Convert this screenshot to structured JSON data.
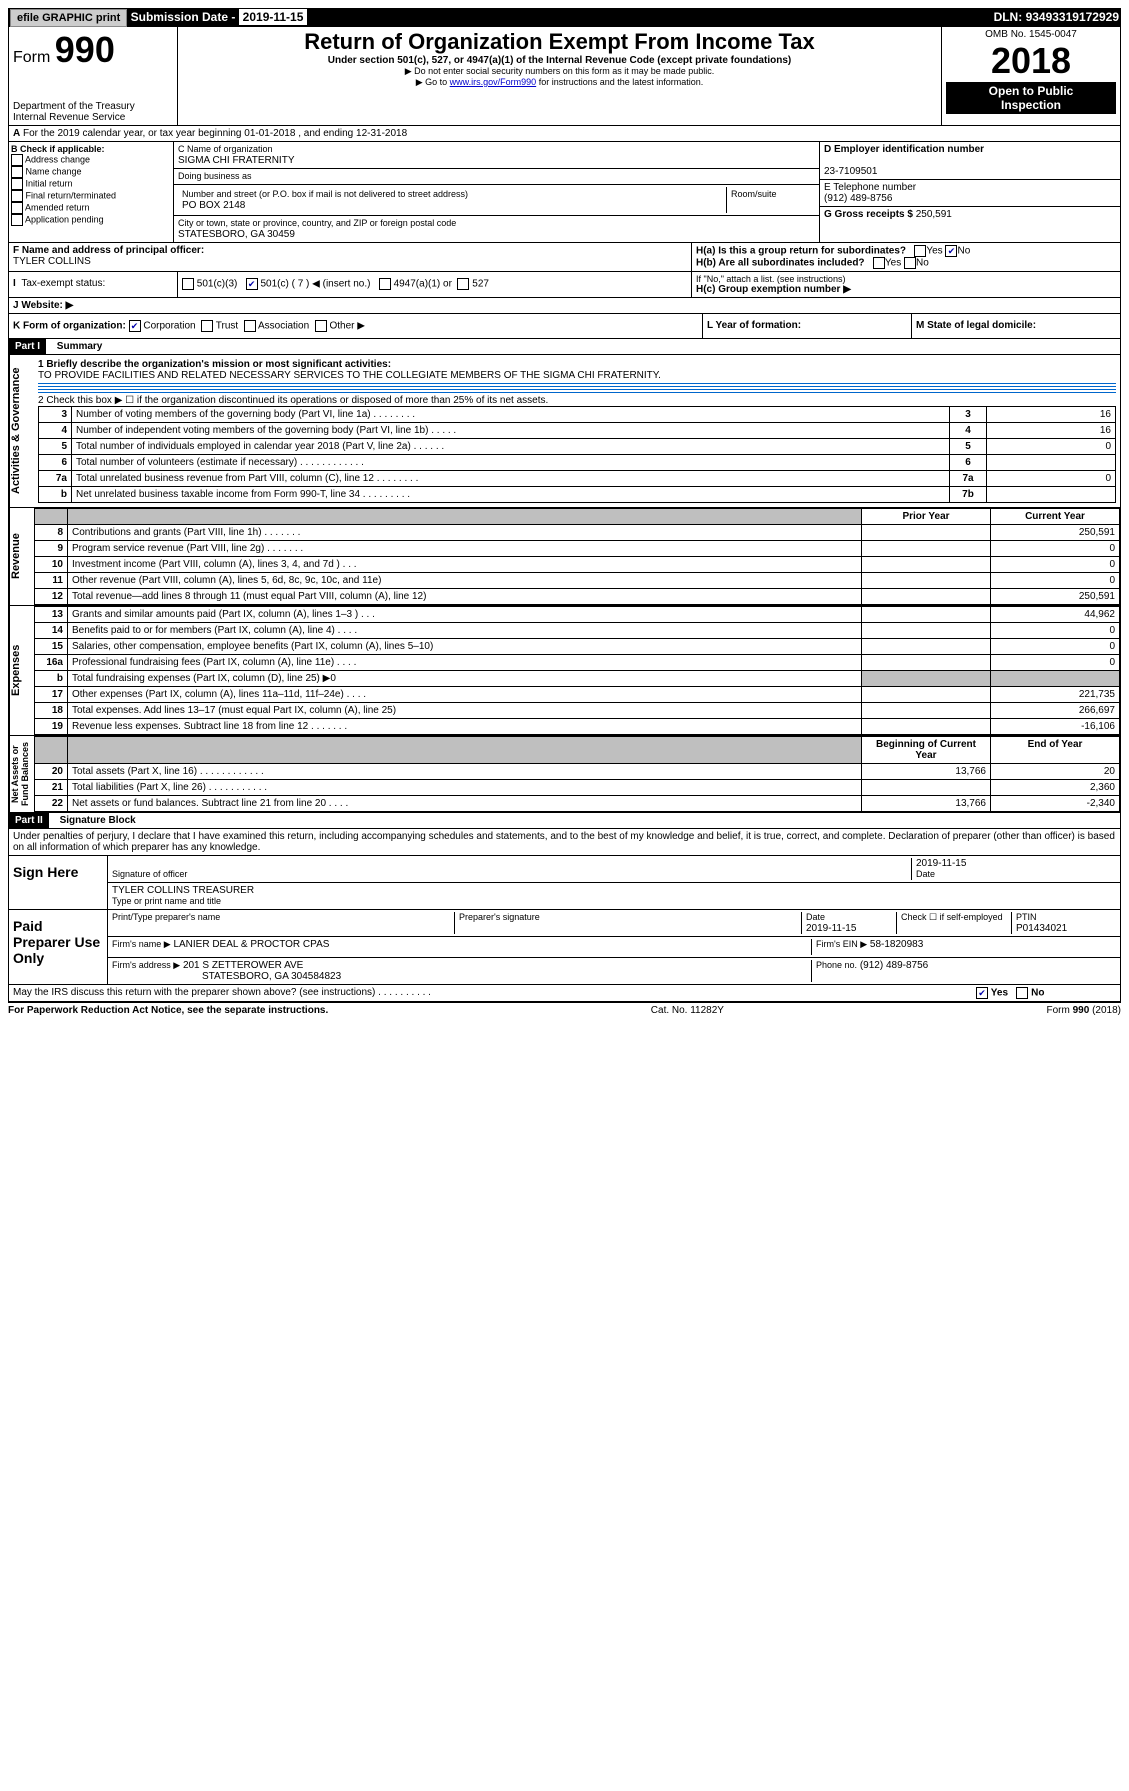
{
  "header": {
    "efile": "efile GRAPHIC print",
    "submission_label": "Submission Date - ",
    "submission_date": "2019-11-15",
    "dln_label": "DLN: ",
    "dln": "93493319172929"
  },
  "form": {
    "form_label": "Form",
    "form_number": "990",
    "title": "Return of Organization Exempt From Income Tax",
    "subtitle": "Under section 501(c), 527, or 4947(a)(1) of the Internal Revenue Code (except private foundations)",
    "note1": "▶ Do not enter social security numbers on this form as it may be made public.",
    "note2_prefix": "▶ Go to ",
    "note2_link": "www.irs.gov/Form990",
    "note2_suffix": " for instructions and the latest information.",
    "dept": "Department of the Treasury\nInternal Revenue Service",
    "omb": "OMB No. 1545-0047",
    "year": "2018",
    "open": "Open to Public\nInspection"
  },
  "row_a": "For the 2019 calendar year, or tax year beginning 01-01-2018    , and ending 12-31-2018",
  "box_b": {
    "label": "B Check if applicable:",
    "items": [
      "Address change",
      "Name change",
      "Initial return",
      "Final return/terminated",
      "Amended return",
      "Application pending"
    ]
  },
  "box_c": {
    "name_label": "C Name of organization",
    "name": "SIGMA CHI FRATERNITY",
    "dba_label": "Doing business as",
    "addr_label": "Number and street (or P.O. box if mail is not delivered to street address)",
    "room_label": "Room/suite",
    "addr": "PO BOX 2148",
    "city_label": "City or town, state or province, country, and ZIP or foreign postal code",
    "city": "STATESBORO, GA  30459"
  },
  "box_d": {
    "label": "D Employer identification number",
    "value": "23-7109501"
  },
  "box_e": {
    "label": "E Telephone number",
    "value": "(912) 489-8756"
  },
  "box_g": {
    "label": "G Gross receipts $ ",
    "value": "250,591"
  },
  "box_f": {
    "label": "F  Name and address of principal officer:",
    "value": "TYLER COLLINS"
  },
  "box_h": {
    "ha": "H(a)  Is this a group return for subordinates?",
    "hb": "H(b)  Are all subordinates included?",
    "hb_note": "If \"No,\" attach a list. (see instructions)",
    "hc": "H(c)  Group exemption number ▶",
    "yes": "Yes",
    "no": "No"
  },
  "box_i": {
    "label": "Tax-exempt status:",
    "c3": "501(c)(3)",
    "c": "501(c) ( 7 ) ◀ (insert no.)",
    "a1": "4947(a)(1) or",
    "s527": "527"
  },
  "box_j": {
    "label": "J   Website: ▶"
  },
  "box_k": {
    "label": "K Form of organization:",
    "corp": "Corporation",
    "trust": "Trust",
    "assoc": "Association",
    "other": "Other ▶"
  },
  "box_l": {
    "label": "L Year of formation:"
  },
  "box_m": {
    "label": "M State of legal domicile:"
  },
  "part1": {
    "header": "Part I",
    "title": "Summary",
    "line1_label": "1  Briefly describe the organization's mission or most significant activities:",
    "line1_text": "TO PROVIDE FACILITIES AND RELATED NECESSARY SERVICES TO THE COLLEGIATE MEMBERS OF THE SIGMA CHI FRATERNITY.",
    "line2": "2    Check this box ▶ ☐  if the organization discontinued its operations or disposed of more than 25% of its net assets.",
    "sidebar_ag": "Activities & Governance",
    "sidebar_rev": "Revenue",
    "sidebar_exp": "Expenses",
    "sidebar_na": "Net Assets or\nFund Balances",
    "col_prior": "Prior Year",
    "col_current": "Current Year",
    "col_begin": "Beginning of Current Year",
    "col_end": "End of Year",
    "rows_ag": [
      {
        "n": "3",
        "d": "Number of voting members of the governing body (Part VI, line 1a)   .    .    .    .    .    .    .    .",
        "b": "3",
        "v": "16"
      },
      {
        "n": "4",
        "d": "Number of independent voting members of the governing body (Part VI, line 1b)   .    .    .    .    .",
        "b": "4",
        "v": "16"
      },
      {
        "n": "5",
        "d": "Total number of individuals employed in calendar year 2018 (Part V, line 2a)   .    .    .    .    .    .",
        "b": "5",
        "v": "0"
      },
      {
        "n": "6",
        "d": "Total number of volunteers (estimate if necessary)   .    .    .    .    .    .    .    .    .    .    .    .",
        "b": "6",
        "v": ""
      },
      {
        "n": "7a",
        "d": "Total unrelated business revenue from Part VIII, column (C), line 12   .    .    .    .    .    .    .    .",
        "b": "7a",
        "v": "0"
      },
      {
        "n": "b",
        "d": "Net unrelated business taxable income from Form 990-T, line 34   .    .    .    .    .    .    .    .    .",
        "b": "7b",
        "v": ""
      }
    ],
    "rows_rev": [
      {
        "n": "8",
        "d": "Contributions and grants (Part VIII, line 1h)   .    .    .    .    .    .    .",
        "p": "",
        "c": "250,591"
      },
      {
        "n": "9",
        "d": "Program service revenue (Part VIII, line 2g)   .    .    .    .    .    .    .",
        "p": "",
        "c": "0"
      },
      {
        "n": "10",
        "d": "Investment income (Part VIII, column (A), lines 3, 4, and 7d )   .    .    .",
        "p": "",
        "c": "0"
      },
      {
        "n": "11",
        "d": "Other revenue (Part VIII, column (A), lines 5, 6d, 8c, 9c, 10c, and 11e)",
        "p": "",
        "c": "0"
      },
      {
        "n": "12",
        "d": "Total revenue—add lines 8 through 11 (must equal Part VIII, column (A), line 12)",
        "p": "",
        "c": "250,591"
      }
    ],
    "rows_exp": [
      {
        "n": "13",
        "d": "Grants and similar amounts paid (Part IX, column (A), lines 1–3 )   .    .    .",
        "p": "",
        "c": "44,962"
      },
      {
        "n": "14",
        "d": "Benefits paid to or for members (Part IX, column (A), line 4)   .    .    .    .",
        "p": "",
        "c": "0"
      },
      {
        "n": "15",
        "d": "Salaries, other compensation, employee benefits (Part IX, column (A), lines 5–10)",
        "p": "",
        "c": "0"
      },
      {
        "n": "16a",
        "d": "Professional fundraising fees (Part IX, column (A), line 11e)   .    .    .    .",
        "p": "",
        "c": "0"
      },
      {
        "n": "b",
        "d": "Total fundraising expenses (Part IX, column (D), line 25) ▶0",
        "shade": true
      },
      {
        "n": "17",
        "d": "Other expenses (Part IX, column (A), lines 11a–11d, 11f–24e)   .    .    .    .",
        "p": "",
        "c": "221,735"
      },
      {
        "n": "18",
        "d": "Total expenses. Add lines 13–17 (must equal Part IX, column (A), line 25)",
        "p": "",
        "c": "266,697"
      },
      {
        "n": "19",
        "d": "Revenue less expenses. Subtract line 18 from line 12   .    .    .    .    .    .    .",
        "p": "",
        "c": "-16,106"
      }
    ],
    "rows_na": [
      {
        "n": "20",
        "d": "Total assets (Part X, line 16)   .    .    .    .    .    .    .    .    .    .    .    .",
        "p": "13,766",
        "c": "20"
      },
      {
        "n": "21",
        "d": "Total liabilities (Part X, line 26)   .    .    .    .    .    .    .    .    .    .    .",
        "p": "",
        "c": "2,360"
      },
      {
        "n": "22",
        "d": "Net assets or fund balances. Subtract line 21 from line 20   .    .    .    .",
        "p": "13,766",
        "c": "-2,340"
      }
    ]
  },
  "part2": {
    "header": "Part II",
    "title": "Signature Block",
    "declaration": "Under penalties of perjury, I declare that I have examined this return, including accompanying schedules and statements, and to the best of my knowledge and belief, it is true, correct, and complete. Declaration of preparer (other than officer) is based on all information of which preparer has any knowledge.",
    "sign_here": "Sign Here",
    "sig_officer": "Signature of officer",
    "sig_date": "2019-11-15",
    "date_label": "Date",
    "officer_name": "TYLER COLLINS TREASURER",
    "officer_name_label": "Type or print name and title",
    "paid": "Paid Preparer Use Only",
    "prep_name_label": "Print/Type preparer's name",
    "prep_sig_label": "Preparer's signature",
    "prep_date_label": "Date",
    "prep_date": "2019-11-15",
    "check_if": "Check ☐ if self-employed",
    "ptin_label": "PTIN",
    "ptin": "P01434021",
    "firm_name_label": "Firm's name    ▶",
    "firm_name": "LANIER DEAL & PROCTOR CPAS",
    "firm_ein_label": "Firm's EIN ▶",
    "firm_ein": "58-1820983",
    "firm_addr_label": "Firm's address ▶",
    "firm_addr": "201 S ZETTEROWER AVE",
    "firm_city": "STATESBORO, GA  304584823",
    "phone_label": "Phone no.",
    "phone": "(912) 489-8756",
    "discuss": "May the IRS discuss this return with the preparer shown above? (see instructions)   .    .    .    .    .    .    .    .    .    .",
    "yes": "Yes",
    "no": "No"
  },
  "footer": {
    "left": "For Paperwork Reduction Act Notice, see the separate instructions.",
    "mid": "Cat. No. 11282Y",
    "right": "Form 990 (2018)"
  }
}
